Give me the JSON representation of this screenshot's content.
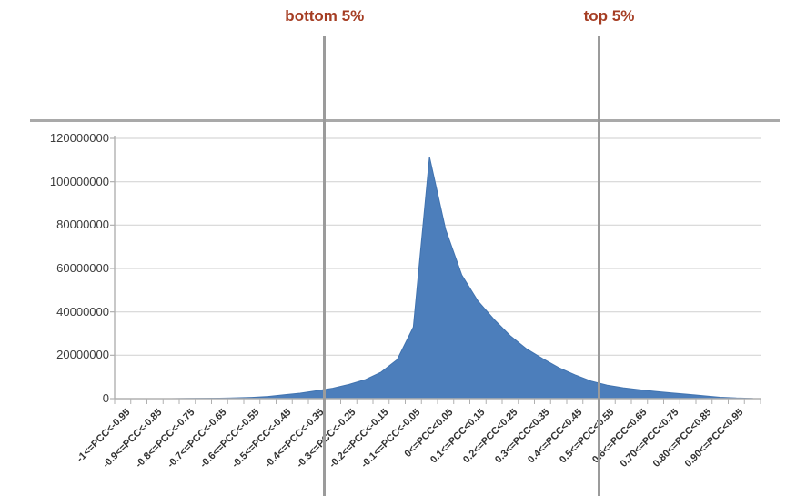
{
  "chart_data": {
    "type": "area",
    "title": "",
    "xlabel": "",
    "ylabel": "",
    "x_range": [
      -1,
      1
    ],
    "bin_width": 0.05,
    "n_bins": 40,
    "values": [
      0,
      0,
      0,
      0,
      100000,
      150000,
      200000,
      350000,
      600000,
      1000000,
      1800000,
      2500000,
      3600000,
      4800000,
      6500000,
      8700000,
      12200000,
      18000000,
      33000000,
      111500000,
      78000000,
      57000000,
      45000000,
      36500000,
      29000000,
      23000000,
      18500000,
      14300000,
      11000000,
      8100000,
      6200000,
      5000000,
      4100000,
      3300000,
      2600000,
      2000000,
      1300000,
      650000,
      300000,
      120000
    ],
    "x_tick_labels": [
      "-1<=PCC<-0.95",
      "-0.9<=PCC<-0.85",
      "-0.8<=PCC<-0.75",
      "-0.7<=PCC<-0.65",
      "-0.6<=PCC<-0.55",
      "-0.5<=PCC<-0.45",
      "-0.4<=PCC<-0.35",
      "-0.3<=PCC<-0.25",
      "-0.2<=PCC<-0.15",
      "-0.1<=PCC<-0.05",
      "0<=PCC<0.05",
      "0.1<=PCC<0.15",
      "0.2<=PCC<0.25",
      "0.3<=PCC<0.35",
      "0.4<=PCC<0.45",
      "0.5<=PCC<0.55",
      "0.6<=PCC<0.65",
      "0.70<=PCC<0.75",
      "0.80<=PCC<0.85",
      "0.90<=PCC<0.95"
    ],
    "x_label_every": 2,
    "y_ticks": [
      0,
      20000000,
      40000000,
      60000000,
      80000000,
      100000000,
      120000000
    ],
    "y_tick_labels": [
      "0",
      "20000000",
      "40000000",
      "60000000",
      "80000000",
      "100000000",
      "120000000"
    ],
    "ylim": [
      0,
      120000000
    ],
    "grid": true,
    "legend": "none",
    "series_color": "#4c7ebb",
    "series_edge_color": "#4173af",
    "gridline_color": "#d6d6d6",
    "axis_color": "#b0b0b0",
    "markers": [
      {
        "label": "bottom 5%",
        "pcc": -0.35,
        "label_offset_x": 0
      },
      {
        "label": "top 5%",
        "pcc": 0.5,
        "label_offset_x": 11
      }
    ],
    "marker_line_color": "#9b9b9b",
    "annotation_color": "#a53d23"
  }
}
